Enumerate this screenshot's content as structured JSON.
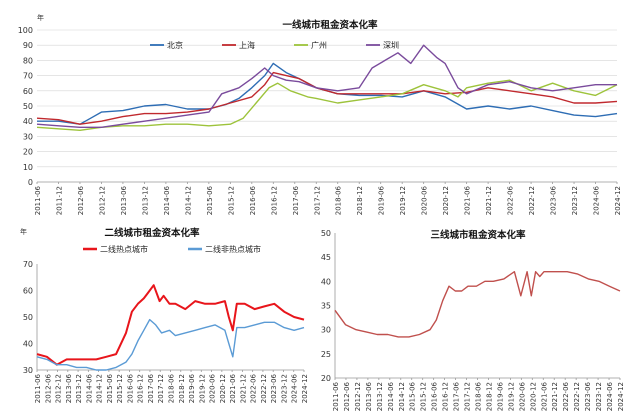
{
  "chart_data": [
    {
      "type": "line",
      "id": "c1",
      "title": "一线城市租金资本化率",
      "unit": "年",
      "ylim": [
        0,
        100
      ],
      "yticks": [
        0,
        10,
        20,
        30,
        40,
        50,
        60,
        70,
        80,
        90,
        100
      ],
      "xlim": [
        2011.5,
        2025.0
      ],
      "xticks": [
        "2011-06",
        "2011-12",
        "2012-06",
        "2012-12",
        "2013-06",
        "2013-12",
        "2014-06",
        "2014-12",
        "2015-06",
        "2015-12",
        "2016-06",
        "2016-12",
        "2017-06",
        "2017-12",
        "2018-06",
        "2018-12",
        "2019-06",
        "2019-12",
        "2020-06",
        "2020-12",
        "2021-06",
        "2021-12",
        "2022-06",
        "2022-12",
        "2023-06",
        "2023-12",
        "2024-06",
        "2024-12"
      ],
      "grid": true,
      "legend_position": "top",
      "series": [
        {
          "name": "北京",
          "color": "#2e6db4",
          "x": [
            2011.5,
            2012.0,
            2012.5,
            2012.75,
            2013.0,
            2013.5,
            2014.0,
            2014.5,
            2015.0,
            2015.5,
            2015.9,
            2016.2,
            2016.5,
            2016.8,
            2017.0,
            2017.3,
            2017.6,
            2018.0,
            2018.5,
            2019.0,
            2019.5,
            2020.0,
            2020.5,
            2021.0,
            2021.5,
            2022.0,
            2022.5,
            2023.0,
            2023.5,
            2024.0,
            2024.5,
            2025.0
          ],
          "y": [
            40,
            40,
            38,
            42,
            46,
            47,
            50,
            51,
            48,
            48,
            51,
            55,
            62,
            70,
            78,
            72,
            68,
            62,
            58,
            57,
            57,
            56,
            60,
            56,
            48,
            50,
            48,
            50,
            47,
            44,
            43,
            45
          ]
        },
        {
          "name": "上海",
          "color": "#c0292e",
          "x": [
            2011.5,
            2012.0,
            2012.5,
            2013.0,
            2013.5,
            2014.0,
            2014.5,
            2015.0,
            2015.5,
            2016.0,
            2016.5,
            2016.8,
            2017.0,
            2017.3,
            2017.6,
            2018.0,
            2018.5,
            2019.0,
            2019.5,
            2020.0,
            2020.5,
            2021.0,
            2021.5,
            2022.0,
            2022.5,
            2023.0,
            2023.5,
            2024.0,
            2024.5,
            2025.0
          ],
          "y": [
            42,
            41,
            38,
            40,
            43,
            45,
            45,
            46,
            48,
            52,
            56,
            64,
            72,
            70,
            68,
            62,
            58,
            58,
            58,
            58,
            60,
            58,
            59,
            62,
            60,
            58,
            56,
            52,
            52,
            53
          ]
        },
        {
          "name": "广州",
          "color": "#9dc33b",
          "x": [
            2011.5,
            2012.0,
            2012.5,
            2013.0,
            2013.5,
            2014.0,
            2014.5,
            2015.0,
            2015.5,
            2016.0,
            2016.3,
            2016.6,
            2016.9,
            2017.1,
            2017.4,
            2017.8,
            2018.0,
            2018.5,
            2019.0,
            2019.5,
            2020.0,
            2020.5,
            2021.0,
            2021.3,
            2021.5,
            2022.0,
            2022.5,
            2023.0,
            2023.5,
            2024.0,
            2024.5,
            2025.0
          ],
          "y": [
            36,
            35,
            34,
            36,
            37,
            37,
            38,
            38,
            37,
            38,
            42,
            52,
            62,
            65,
            60,
            56,
            55,
            52,
            54,
            56,
            58,
            64,
            60,
            56,
            62,
            65,
            67,
            60,
            65,
            60,
            57,
            64
          ]
        },
        {
          "name": "深圳",
          "color": "#7a4b9c",
          "x": [
            2011.5,
            2012.0,
            2012.5,
            2013.0,
            2013.5,
            2014.0,
            2014.5,
            2015.0,
            2015.5,
            2015.8,
            2016.2,
            2016.5,
            2016.8,
            2017.0,
            2017.3,
            2017.6,
            2018.0,
            2018.5,
            2019.0,
            2019.3,
            2019.6,
            2019.9,
            2020.2,
            2020.5,
            2020.8,
            2021.0,
            2021.3,
            2021.5,
            2022.0,
            2022.5,
            2023.0,
            2023.5,
            2024.0,
            2024.5,
            2025.0
          ],
          "y": [
            38,
            37,
            36,
            36,
            38,
            40,
            42,
            44,
            46,
            58,
            62,
            68,
            75,
            70,
            67,
            66,
            62,
            60,
            62,
            75,
            80,
            85,
            78,
            90,
            82,
            78,
            62,
            58,
            64,
            66,
            62,
            60,
            62,
            64,
            64
          ]
        }
      ]
    },
    {
      "type": "line",
      "id": "c2",
      "title": "二线城市租金资本化率",
      "unit": "年",
      "ylim": [
        30,
        70
      ],
      "yticks": [
        30,
        40,
        50,
        60,
        70
      ],
      "xlim": [
        2011.5,
        2025.0
      ],
      "xticks": [
        "2011-06",
        "2012-06",
        "2012-12",
        "2013-06",
        "2013-12",
        "2014-06",
        "2014-12",
        "2015-06",
        "2015-12",
        "2016-06",
        "2016-12",
        "2017-06",
        "2017-12",
        "2018-06",
        "2018-12",
        "2019-06",
        "2019-12",
        "2020-06",
        "2020-12",
        "2021-06",
        "2021-12",
        "2022-06",
        "2022-12",
        "2023-06",
        "2023-12",
        "2024-06",
        "2024-12"
      ],
      "grid": false,
      "legend_position": "top-left",
      "series": [
        {
          "name": "二线热点城市",
          "color": "#e8151b",
          "x": [
            2011.5,
            2012.0,
            2012.5,
            2013.0,
            2013.5,
            2014.0,
            2014.5,
            2015.0,
            2015.5,
            2016.0,
            2016.3,
            2016.6,
            2016.9,
            2017.1,
            2017.4,
            2017.7,
            2017.9,
            2018.2,
            2018.5,
            2019.0,
            2019.5,
            2020.0,
            2020.5,
            2021.0,
            2021.2,
            2021.4,
            2021.6,
            2022.0,
            2022.5,
            2023.0,
            2023.5,
            2024.0,
            2024.5,
            2025.0
          ],
          "y": [
            36,
            35,
            32,
            34,
            34,
            34,
            34,
            35,
            36,
            44,
            52,
            55,
            57,
            59,
            62,
            56,
            58,
            55,
            55,
            53,
            56,
            55,
            55,
            56,
            50,
            45,
            55,
            55,
            53,
            54,
            55,
            52,
            50,
            49
          ]
        },
        {
          "name": "二线非热点城市",
          "color": "#5b9bd5",
          "x": [
            2011.5,
            2012.0,
            2012.5,
            2013.0,
            2013.5,
            2014.0,
            2014.5,
            2015.0,
            2015.5,
            2016.0,
            2016.3,
            2016.6,
            2016.9,
            2017.2,
            2017.5,
            2017.8,
            2018.2,
            2018.5,
            2019.0,
            2019.5,
            2020.0,
            2020.5,
            2021.0,
            2021.2,
            2021.4,
            2021.6,
            2022.0,
            2022.5,
            2023.0,
            2023.5,
            2024.0,
            2024.5,
            2025.0
          ],
          "y": [
            35,
            34,
            32,
            32,
            31,
            31,
            30,
            30,
            31,
            33,
            36,
            41,
            45,
            49,
            47,
            44,
            45,
            43,
            44,
            45,
            46,
            47,
            45,
            40,
            35,
            46,
            46,
            47,
            48,
            48,
            46,
            45,
            46
          ]
        }
      ]
    },
    {
      "type": "line",
      "id": "c3",
      "title": "三线城市租金资本化率",
      "unit": "年",
      "ylim": [
        20,
        50
      ],
      "yticks": [
        20,
        25,
        30,
        35,
        40,
        45,
        50
      ],
      "xlim": [
        2011.5,
        2025.0
      ],
      "xticks": [
        "2011-06",
        "2012-06",
        "2012-12",
        "2013-06",
        "2013-12",
        "2014-06",
        "2014-12",
        "2015-06",
        "2015-12",
        "2016-06",
        "2016-12",
        "2017-06",
        "2017-12",
        "2018-06",
        "2018-12",
        "2019-06",
        "2019-12",
        "2020-06",
        "2020-12",
        "2021-06",
        "2021-12",
        "2022-06",
        "2022-12",
        "2023-06",
        "2023-12",
        "2024-06",
        "2024-12"
      ],
      "grid": false,
      "series": [
        {
          "name": "",
          "color": "#c0504d",
          "x": [
            2011.5,
            2012.0,
            2012.5,
            2013.0,
            2013.5,
            2014.0,
            2014.5,
            2015.0,
            2015.5,
            2016.0,
            2016.3,
            2016.6,
            2016.9,
            2017.2,
            2017.5,
            2017.8,
            2018.2,
            2018.6,
            2019.0,
            2019.5,
            2020.0,
            2020.3,
            2020.6,
            2020.8,
            2021.0,
            2021.2,
            2021.4,
            2021.6,
            2022.0,
            2022.5,
            2023.0,
            2023.5,
            2024.0,
            2024.5,
            2025.0
          ],
          "y": [
            34,
            31,
            30,
            29.5,
            29,
            29,
            28.5,
            28.5,
            29,
            30,
            32,
            36,
            39,
            38,
            38,
            39,
            39,
            40,
            40,
            40.5,
            42,
            37,
            42,
            37,
            42,
            41,
            42,
            42,
            42,
            42,
            41.5,
            40.5,
            40,
            39,
            38
          ]
        }
      ]
    }
  ]
}
